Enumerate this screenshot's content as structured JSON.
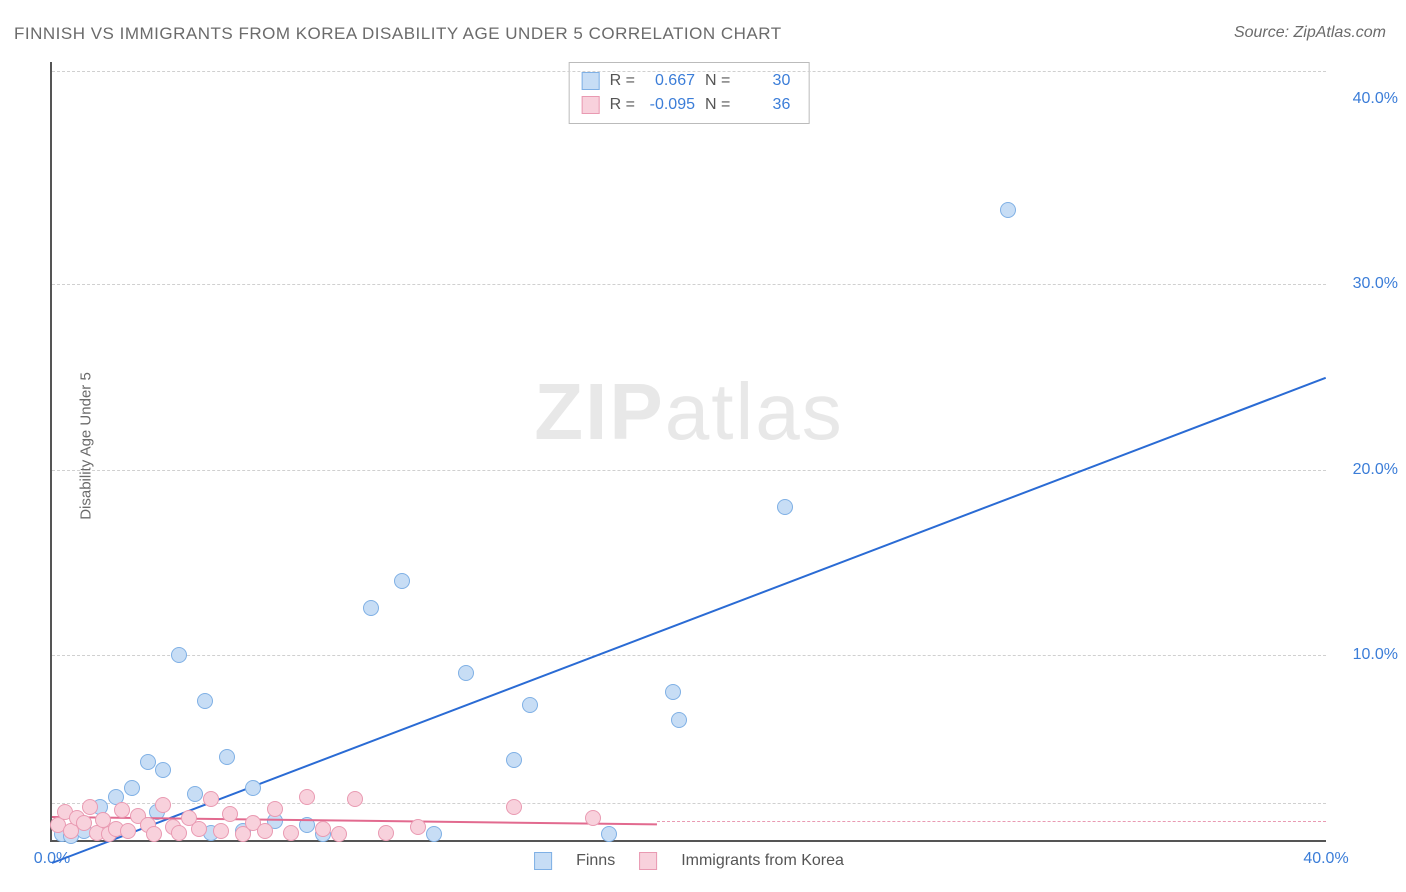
{
  "title": "FINNISH VS IMMIGRANTS FROM KOREA DISABILITY AGE UNDER 5 CORRELATION CHART",
  "source": "Source: ZipAtlas.com",
  "y_axis_label": "Disability Age Under 5",
  "watermark_bold": "ZIP",
  "watermark_rest": "atlas",
  "chart": {
    "type": "scatter",
    "xlim": [
      0,
      40
    ],
    "ylim": [
      0,
      42
    ],
    "x_ticks": [
      0,
      40
    ],
    "x_tick_labels": [
      "0.0%",
      "40.0%"
    ],
    "y_ticks": [
      10,
      20,
      30,
      40
    ],
    "y_tick_labels": [
      "10.0%",
      "20.0%",
      "30.0%",
      "40.0%"
    ],
    "gridlines_y": [
      2,
      10,
      20,
      30,
      41.5
    ],
    "background_color": "#ffffff",
    "grid_color": "#d0d0d0",
    "series": [
      {
        "name": "Finns",
        "color_fill": "#c7ddf5",
        "color_stroke": "#7fb0e5",
        "marker_radius": 8,
        "trend": {
          "x1": 0,
          "y1": -1.2,
          "x2": 40,
          "y2": 25,
          "color": "#2a6bd4",
          "width": 2
        },
        "points": [
          [
            0.3,
            0.3
          ],
          [
            0.6,
            0.2
          ],
          [
            1,
            0.5
          ],
          [
            1.5,
            1.8
          ],
          [
            2,
            2.3
          ],
          [
            2.5,
            2.8
          ],
          [
            3,
            4.2
          ],
          [
            3.3,
            1.5
          ],
          [
            3.5,
            3.8
          ],
          [
            4,
            10
          ],
          [
            4.5,
            2.5
          ],
          [
            4.8,
            7.5
          ],
          [
            5,
            0.4
          ],
          [
            5.5,
            4.5
          ],
          [
            6,
            0.5
          ],
          [
            6.3,
            2.8
          ],
          [
            7,
            1
          ],
          [
            8,
            0.8
          ],
          [
            8.5,
            0.3
          ],
          [
            10,
            12.5
          ],
          [
            11,
            14
          ],
          [
            12,
            0.3
          ],
          [
            13,
            9
          ],
          [
            14.5,
            4.3
          ],
          [
            15,
            7.3
          ],
          [
            17.5,
            0.3
          ],
          [
            19.5,
            8
          ],
          [
            19.7,
            6.5
          ],
          [
            23,
            18
          ],
          [
            30,
            34
          ]
        ]
      },
      {
        "name": "Immigrants from Korea",
        "color_fill": "#f8d1dc",
        "color_stroke": "#e99ab2",
        "marker_radius": 8,
        "trend": {
          "x1": 0,
          "y1": 1.3,
          "x2": 19,
          "y2": 0.9,
          "color": "#e26a8f",
          "width": 2
        },
        "dashed_extension_y": 1.0,
        "points": [
          [
            0.2,
            0.8
          ],
          [
            0.4,
            1.5
          ],
          [
            0.6,
            0.5
          ],
          [
            0.8,
            1.2
          ],
          [
            1,
            0.9
          ],
          [
            1.2,
            1.8
          ],
          [
            1.4,
            0.4
          ],
          [
            1.6,
            1.1
          ],
          [
            1.8,
            0.3
          ],
          [
            2,
            0.6
          ],
          [
            2.2,
            1.6
          ],
          [
            2.4,
            0.5
          ],
          [
            2.7,
            1.3
          ],
          [
            3,
            0.8
          ],
          [
            3.2,
            0.3
          ],
          [
            3.5,
            1.9
          ],
          [
            3.8,
            0.7
          ],
          [
            4,
            0.4
          ],
          [
            4.3,
            1.2
          ],
          [
            4.6,
            0.6
          ],
          [
            5,
            2.2
          ],
          [
            5.3,
            0.5
          ],
          [
            5.6,
            1.4
          ],
          [
            6,
            0.3
          ],
          [
            6.3,
            0.9
          ],
          [
            6.7,
            0.5
          ],
          [
            7,
            1.7
          ],
          [
            7.5,
            0.4
          ],
          [
            8,
            2.3
          ],
          [
            8.5,
            0.6
          ],
          [
            9,
            0.3
          ],
          [
            9.5,
            2.2
          ],
          [
            10.5,
            0.4
          ],
          [
            11.5,
            0.7
          ],
          [
            14.5,
            1.8
          ],
          [
            17,
            1.2
          ]
        ]
      }
    ]
  },
  "stats_box": {
    "rows": [
      {
        "swatch_fill": "#c7ddf5",
        "swatch_stroke": "#7fb0e5",
        "R": "0.667",
        "N": "30"
      },
      {
        "swatch_fill": "#f8d1dc",
        "swatch_stroke": "#e99ab2",
        "R": "-0.095",
        "N": "36"
      }
    ],
    "label_R": "R =",
    "label_N": "N ="
  },
  "bottom_legend": [
    {
      "swatch_fill": "#c7ddf5",
      "swatch_stroke": "#7fb0e5",
      "label": "Finns"
    },
    {
      "swatch_fill": "#f8d1dc",
      "swatch_stroke": "#e99ab2",
      "label": "Immigrants from Korea"
    }
  ]
}
